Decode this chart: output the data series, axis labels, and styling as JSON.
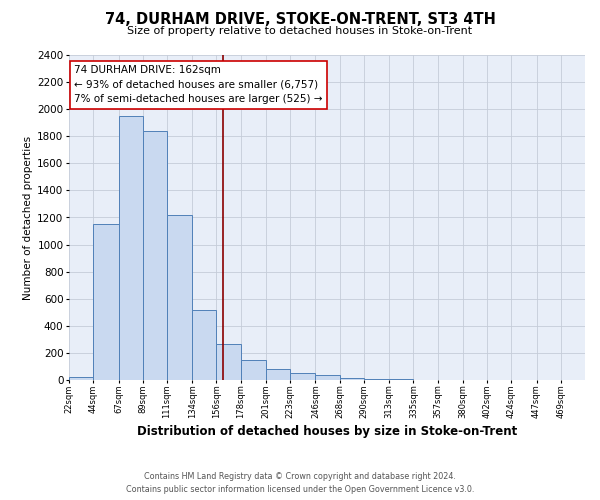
{
  "title": "74, DURHAM DRIVE, STOKE-ON-TRENT, ST3 4TH",
  "subtitle": "Size of property relative to detached houses in Stoke-on-Trent",
  "xlabel": "Distribution of detached houses by size in Stoke-on-Trent",
  "ylabel": "Number of detached properties",
  "bar_left_edges": [
    22,
    44,
    67,
    89,
    111,
    134,
    156,
    178,
    201,
    223,
    246,
    268,
    290,
    313,
    335,
    357,
    380,
    402,
    424,
    447
  ],
  "bar_widths": [
    22,
    23,
    22,
    22,
    23,
    22,
    22,
    23,
    22,
    23,
    22,
    22,
    23,
    22,
    22,
    23,
    22,
    22,
    23,
    22
  ],
  "bar_heights": [
    25,
    1155,
    1950,
    1840,
    1220,
    515,
    265,
    150,
    80,
    55,
    40,
    12,
    5,
    5,
    2,
    2,
    0,
    0,
    0,
    0
  ],
  "bar_color": "#c9d9f0",
  "bar_edge_color": "#5080b8",
  "tick_labels": [
    "22sqm",
    "44sqm",
    "67sqm",
    "89sqm",
    "111sqm",
    "134sqm",
    "156sqm",
    "178sqm",
    "201sqm",
    "223sqm",
    "246sqm",
    "268sqm",
    "290sqm",
    "313sqm",
    "335sqm",
    "357sqm",
    "380sqm",
    "402sqm",
    "424sqm",
    "447sqm",
    "469sqm"
  ],
  "property_line_x": 162,
  "property_line_color": "#8b0000",
  "ylim": [
    0,
    2400
  ],
  "yticks": [
    0,
    200,
    400,
    600,
    800,
    1000,
    1200,
    1400,
    1600,
    1800,
    2000,
    2200,
    2400
  ],
  "annotation_title": "74 DURHAM DRIVE: 162sqm",
  "annotation_line1": "← 93% of detached houses are smaller (6,757)",
  "annotation_line2": "7% of semi-detached houses are larger (525) →",
  "annotation_box_color": "#ffffff",
  "annotation_box_edge_color": "#cc0000",
  "footer_line1": "Contains HM Land Registry data © Crown copyright and database right 2024.",
  "footer_line2": "Contains public sector information licensed under the Open Government Licence v3.0.",
  "plot_bg_color": "#e8eef8",
  "grid_color": "#c5ccd8"
}
